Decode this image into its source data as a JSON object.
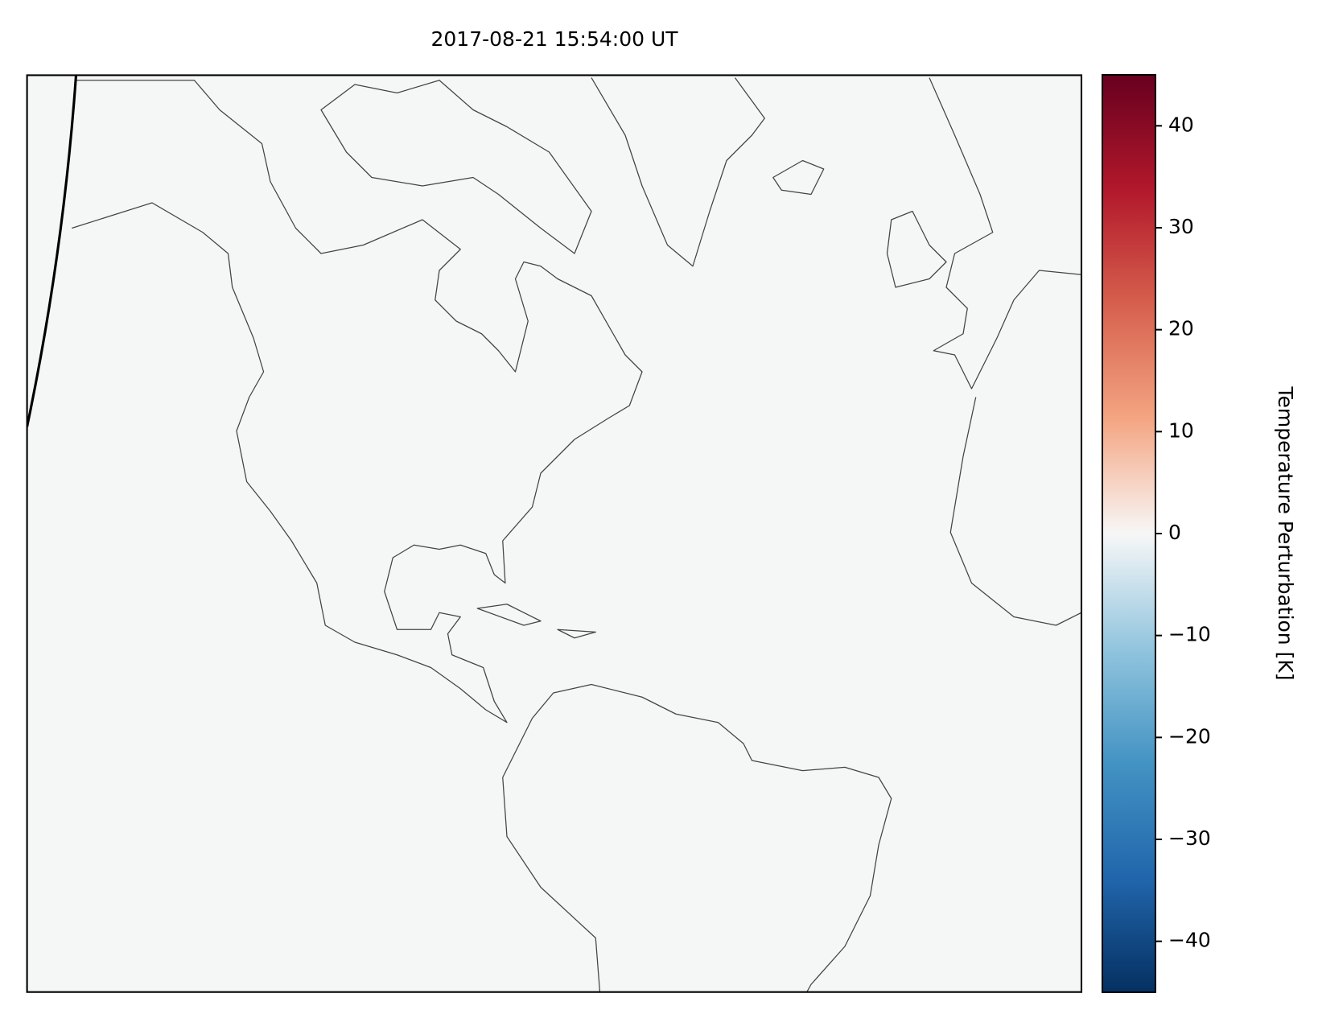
{
  "chart_data": {
    "type": "map",
    "title": "2017-08-21 15:54:00 UT",
    "colorbar": {
      "label": "Temperature Perturbation [K]",
      "lim": [
        -45,
        45
      ],
      "ticks": [
        {
          "value": -40,
          "label": "−40"
        },
        {
          "value": -30,
          "label": "−30"
        },
        {
          "value": -20,
          "label": "−20"
        },
        {
          "value": -10,
          "label": "−10"
        },
        0,
        10,
        20,
        30,
        40
      ]
    }
  }
}
